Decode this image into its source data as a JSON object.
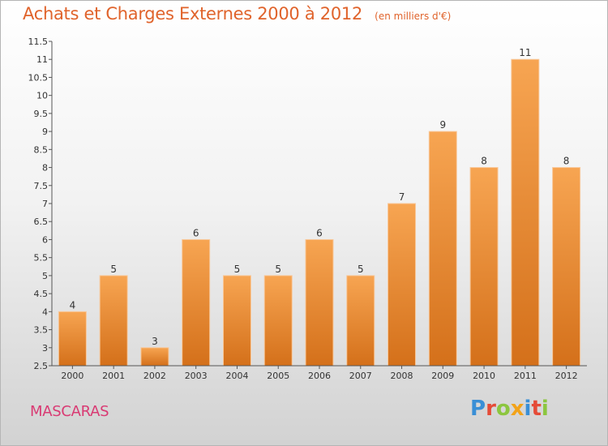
{
  "header": {
    "title": "Achats et Charges Externes 2000 à 2012",
    "subtitle": "(en milliers d'€)"
  },
  "footer": {
    "commune": "MASCARAS",
    "brand": {
      "letters": [
        {
          "char": "P",
          "color": "#3a8fd6"
        },
        {
          "char": "r",
          "color": "#e54b37"
        },
        {
          "char": "o",
          "color": "#8cc63f"
        },
        {
          "char": "x",
          "color": "#f2a31a"
        },
        {
          "char": "i",
          "color": "#3a8fd6"
        },
        {
          "char": "t",
          "color": "#e54b37"
        },
        {
          "char": "i",
          "color": "#8cc63f"
        }
      ]
    }
  },
  "chart_data": {
    "type": "bar",
    "title": "Achats et Charges Externes 2000 à 2012",
    "subtitle": "(en milliers d'€)",
    "xlabel": "",
    "ylabel": "",
    "categories": [
      "2000",
      "2001",
      "2002",
      "2003",
      "2004",
      "2005",
      "2006",
      "2007",
      "2008",
      "2009",
      "2010",
      "2011",
      "2012"
    ],
    "values": [
      4,
      5,
      3,
      6,
      5,
      5,
      6,
      5,
      7,
      9,
      8,
      11,
      8
    ],
    "data_labels": [
      "4",
      "5",
      "3",
      "6",
      "5",
      "5",
      "6",
      "5",
      "7",
      "9",
      "8",
      "11",
      "8"
    ],
    "ylim": [
      2.5,
      11.5
    ],
    "yticks": [
      2.5,
      3,
      3.5,
      4,
      4.5,
      5,
      5.5,
      6,
      6.5,
      7,
      7.5,
      8,
      8.5,
      9,
      9.5,
      10,
      10.5,
      11,
      11.5
    ],
    "ytick_labels": [
      "2.5",
      "3",
      "3.5",
      "4",
      "4.5",
      "5",
      "5.5",
      "6",
      "6.5",
      "7",
      "7.5",
      "8",
      "8.5",
      "9",
      "9.5",
      "10",
      "10.5",
      "11",
      "11.5"
    ],
    "grid": false,
    "colors": {
      "bar_top": "#f7a552",
      "bar_bottom": "#d4701a",
      "bar_edge": "#f8c89a",
      "axis": "#555555"
    }
  }
}
